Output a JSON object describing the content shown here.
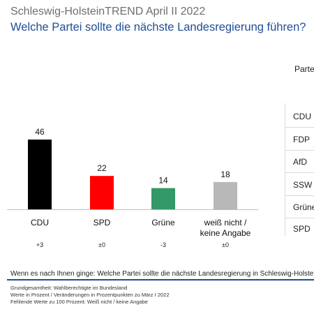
{
  "header": {
    "title": "Schleswig-HolsteinTREND April II 2022",
    "subtitle": "Welche Partei sollte die nächste Landesregierung führen?"
  },
  "chart_data": {
    "type": "bar",
    "categories": [
      "CDU",
      "SPD",
      "Grüne",
      "weiß nicht / keine Angabe"
    ],
    "category_lines": [
      [
        "CDU"
      ],
      [
        "SPD"
      ],
      [
        "Grüne"
      ],
      [
        "weiß nicht /",
        "keine Angabe"
      ]
    ],
    "values": [
      46,
      22,
      14,
      18
    ],
    "changes": [
      "+3",
      "±0",
      "-3",
      "±0"
    ],
    "colors": [
      "#000000",
      "#ff0000",
      "#339966",
      "#b8b8b8"
    ],
    "ylim": [
      0,
      50
    ]
  },
  "side_table": {
    "header": "Parte",
    "items": [
      "CDU",
      "FDP",
      "AfD",
      "SSW",
      "Grüne",
      "SPD"
    ]
  },
  "question": "Wenn es nach Ihnen ginge: Welche Partei sollte die nächste Landesregierung in Schleswig-Holstein",
  "footnotes": [
    "Grundgesamtheit: Wahlberechtigte im Bundesland",
    "Werte in Prozent / Veränderungen in Prozentpunkten zu März I 2022",
    "Fehlende Werte zu 100 Prozent: Weiß nicht / keine Angabe"
  ]
}
